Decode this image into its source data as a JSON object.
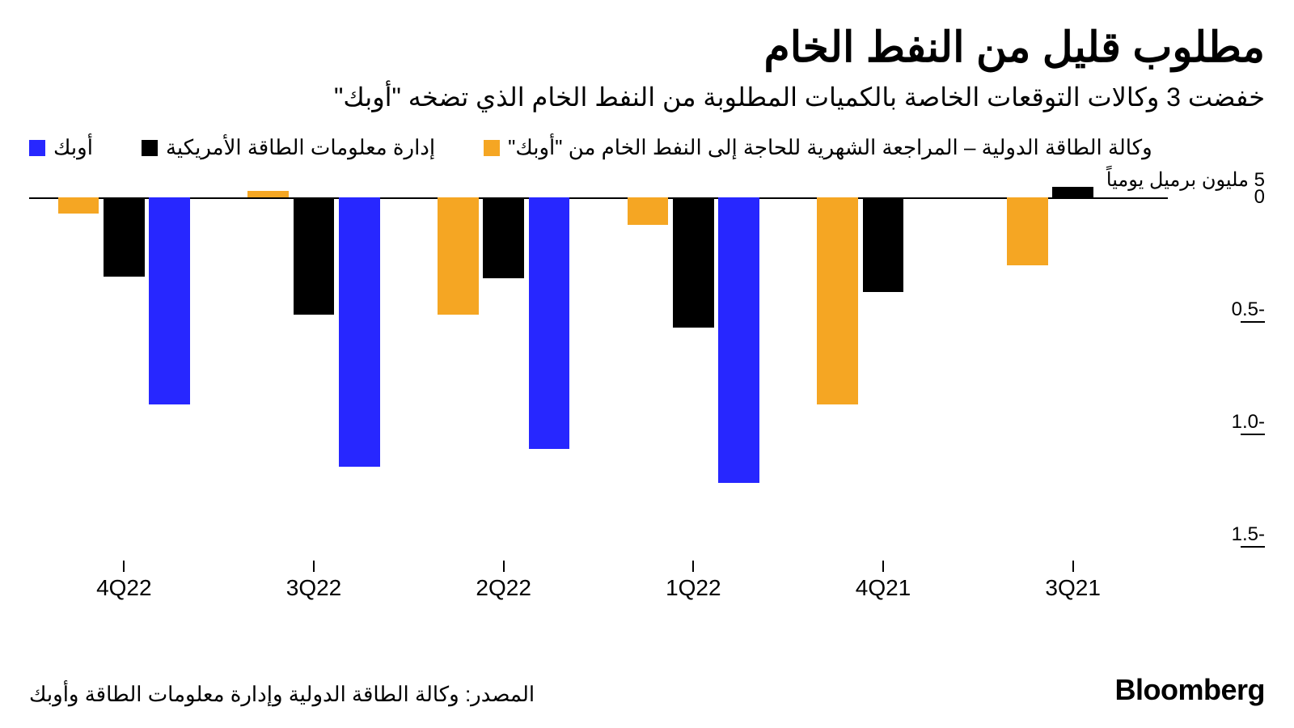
{
  "title": "مطلوب قليل من النفط الخام",
  "subtitle": "خفضت 3 وكالات التوقعات الخاصة بالكميات المطلوبة من النفط الخام الذي تضخه \"أوبك\"",
  "legend": [
    {
      "label": "أوبك",
      "color": "#2727ff"
    },
    {
      "label": "إدارة معلومات الطاقة الأمريكية",
      "color": "#000000"
    },
    {
      "label": "وكالة الطاقة الدولية – المراجعة الشهرية للحاجة إلى النفط الخام من \"أوبك\"",
      "color": "#f5a623"
    }
  ],
  "y_axis": {
    "unit_label": "5 مليون برميل يومياً",
    "min": -1.6,
    "max": 0.13,
    "ticks": [
      {
        "value": 0,
        "label": "0"
      },
      {
        "value": -0.5,
        "label": "-0.5"
      },
      {
        "value": -1.0,
        "label": "-1.0"
      },
      {
        "value": -1.5,
        "label": "-1.5"
      }
    ]
  },
  "categories": [
    "3Q21",
    "4Q21",
    "1Q22",
    "2Q22",
    "3Q22",
    "4Q22"
  ],
  "series_order": [
    "opec",
    "eia",
    "iea"
  ],
  "series_colors": {
    "opec": "#2727ff",
    "eia": "#000000",
    "iea": "#f5a623"
  },
  "data": {
    "3Q21": {
      "opec": 0,
      "eia": 0.05,
      "iea": -0.3
    },
    "4Q21": {
      "opec": 0,
      "eia": -0.42,
      "iea": -0.92
    },
    "1Q22": {
      "opec": -1.27,
      "eia": -0.58,
      "iea": -0.12
    },
    "2Q22": {
      "opec": -1.12,
      "eia": -0.36,
      "iea": -0.52
    },
    "3Q22": {
      "opec": -1.2,
      "eia": -0.52,
      "iea": 0.03
    },
    "4Q22": {
      "opec": -0.92,
      "eia": -0.35,
      "iea": -0.07
    }
  },
  "layout": {
    "group_width_pct": 12.5,
    "bar_width_pct": 3.6,
    "bar_gap_pct": 0.4,
    "approx_aspect": "1600x900"
  },
  "source": "المصدر: وكالة الطاقة الدولية وإدارة معلومات الطاقة وأوبك",
  "brand": "Bloomberg",
  "colors": {
    "background": "#ffffff",
    "text": "#000000",
    "axis": "#000000"
  }
}
